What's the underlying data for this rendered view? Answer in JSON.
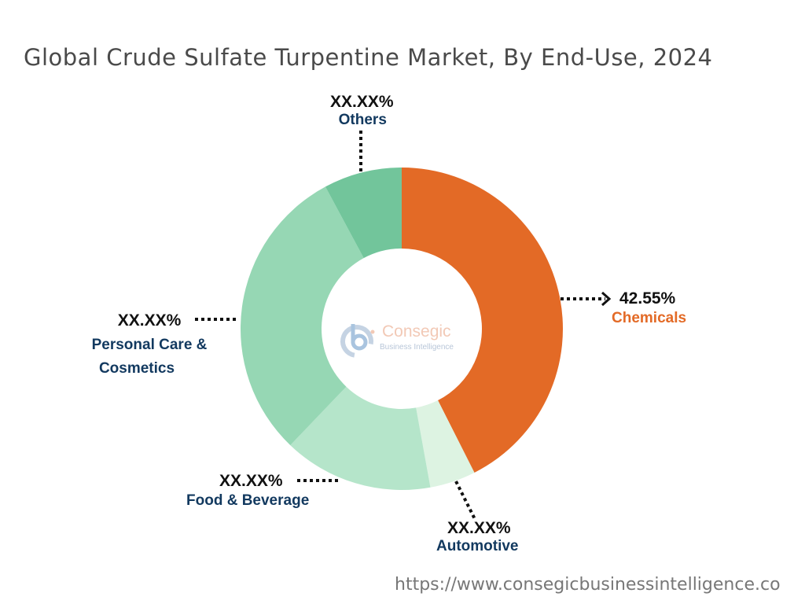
{
  "chart_data": {
    "type": "pie",
    "title": "Global Crude Sulfate Turpentine Market, By End-Use, 2024",
    "donut": true,
    "slices": [
      {
        "name": "Chemicals",
        "value": 42.55,
        "label": "42.55%",
        "color": "#E36A26"
      },
      {
        "name": "Automotive",
        "value": 4.6,
        "label": "XX.XX%",
        "color": "#DDF3E2"
      },
      {
        "name": "Food & Beverage",
        "value": 15.0,
        "label": "XX.XX%",
        "color": "#B5E5CA"
      },
      {
        "name": "Personal Care & Cosmetics",
        "value": 30.0,
        "label": "XX.XX%",
        "color": "#96D7B4"
      },
      {
        "name": "Others",
        "value": 7.85,
        "label": "XX.XX%",
        "color": "#72C59B"
      }
    ],
    "category_lines": {
      "personal": [
        "Personal Care &",
        "Cosmetics"
      ]
    }
  },
  "logo": {
    "name": "Consegic",
    "tagline": "Business Intelligence"
  },
  "footer_url": "https://www.consegicbusinessintelligence.co"
}
